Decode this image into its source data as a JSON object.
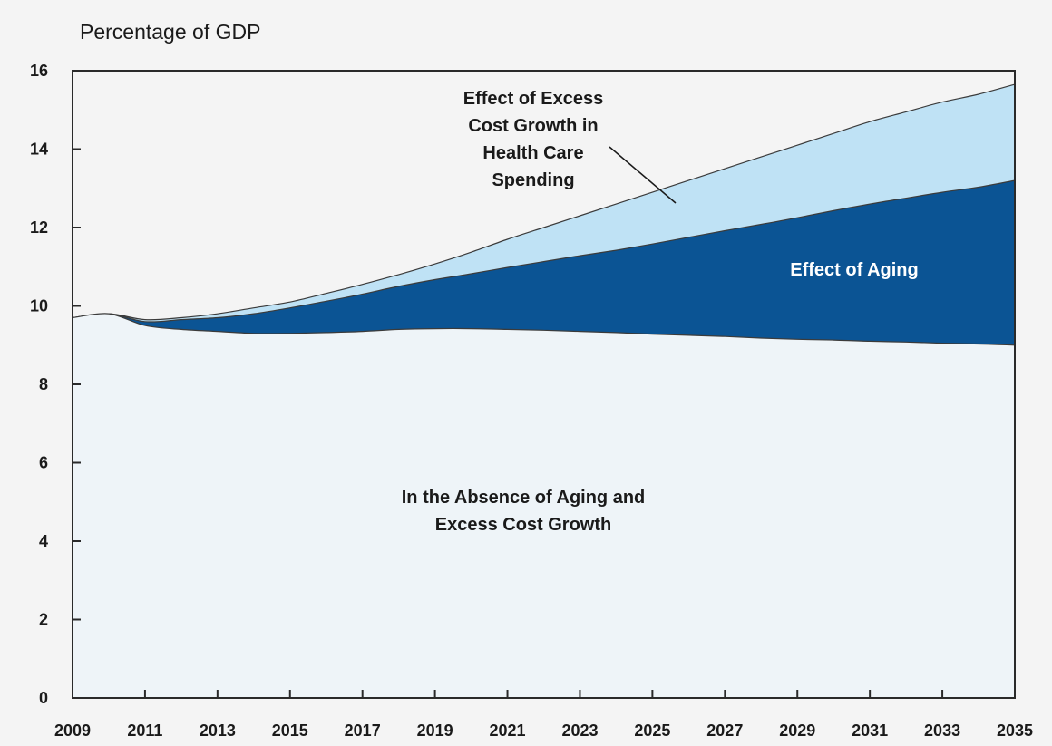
{
  "chart_data": {
    "type": "area",
    "stacked": true,
    "ylabel": "Percentage of GDP",
    "xlabel": "",
    "xlim": [
      2009,
      2035
    ],
    "ylim": [
      0,
      16
    ],
    "x_ticks": [
      "2009",
      "2011",
      "2013",
      "2015",
      "2017",
      "2019",
      "2021",
      "2023",
      "2025",
      "2027",
      "2029",
      "2031",
      "2033",
      "2035"
    ],
    "y_ticks": [
      "0",
      "2",
      "4",
      "6",
      "8",
      "10",
      "12",
      "14",
      "16"
    ],
    "x": [
      2009,
      2010,
      2011,
      2012,
      2013,
      2014,
      2015,
      2016,
      2017,
      2018,
      2019,
      2020,
      2021,
      2022,
      2023,
      2024,
      2025,
      2026,
      2027,
      2028,
      2029,
      2030,
      2031,
      2032,
      2033,
      2034,
      2035
    ],
    "series": [
      {
        "name": "In the Absence of Aging and Excess Cost Growth",
        "color": "#eef4f8",
        "values": [
          9.7,
          9.8,
          9.5,
          9.4,
          9.35,
          9.3,
          9.3,
          9.32,
          9.35,
          9.4,
          9.42,
          9.42,
          9.4,
          9.38,
          9.35,
          9.32,
          9.28,
          9.25,
          9.22,
          9.18,
          9.15,
          9.13,
          9.1,
          9.08,
          9.05,
          9.03,
          9.0
        ]
      },
      {
        "name": "Effect of Aging",
        "color": "#0b5494",
        "values": [
          0,
          0,
          0.1,
          0.25,
          0.35,
          0.5,
          0.65,
          0.8,
          0.95,
          1.1,
          1.25,
          1.4,
          1.58,
          1.75,
          1.93,
          2.1,
          2.3,
          2.5,
          2.7,
          2.9,
          3.1,
          3.3,
          3.5,
          3.67,
          3.85,
          4.0,
          4.2
        ]
      },
      {
        "name": "Effect of Excess Cost Growth in Health Care Spending",
        "color": "#bfe2f5",
        "values": [
          0,
          0,
          0.05,
          0.05,
          0.1,
          0.15,
          0.15,
          0.2,
          0.25,
          0.3,
          0.4,
          0.55,
          0.72,
          0.87,
          1.02,
          1.18,
          1.32,
          1.45,
          1.58,
          1.72,
          1.85,
          1.97,
          2.1,
          2.2,
          2.3,
          2.37,
          2.45
        ]
      }
    ],
    "annotations": {
      "excess": [
        "Effect of Excess",
        "Cost Growth in",
        "Health Care",
        "Spending"
      ],
      "aging": "Effect of Aging",
      "absence": [
        "In the Absence of Aging and",
        "Excess Cost Growth"
      ]
    },
    "grid": false
  }
}
